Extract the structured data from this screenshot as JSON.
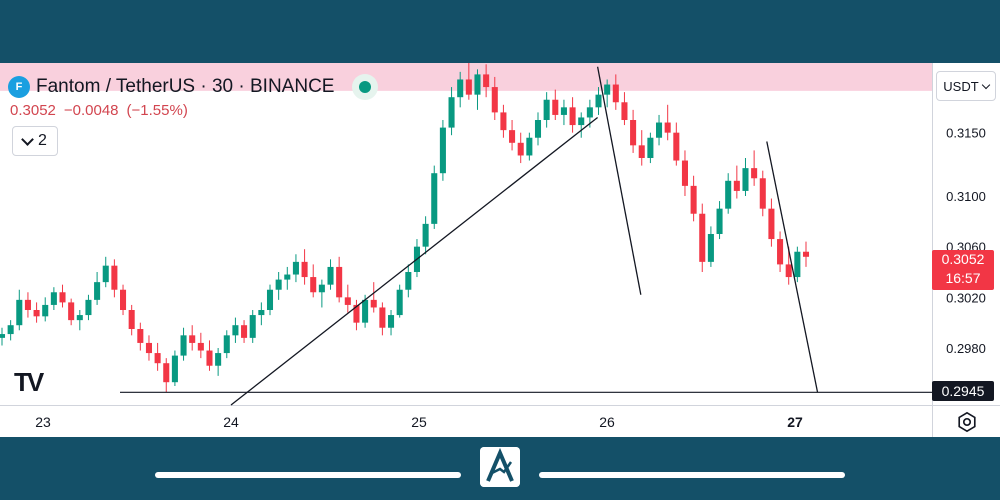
{
  "header": {
    "symbol_title": "Fantom / TetherUS · 30 · BINANCE",
    "last": "0.3052",
    "change": "−0.0048",
    "change_pct": "(−1.55%)",
    "indicator_count": "2",
    "currency": "USDT"
  },
  "price_tag": {
    "price": "0.3052",
    "countdown": "16:57"
  },
  "support_tag": "0.2945",
  "icons": [
    "fantom-logo-icon",
    "live-status-icon",
    "chevron-down-icon",
    "tradingview-logo-icon",
    "settings-icon"
  ],
  "colors": {
    "up": "#089981",
    "down": "#f23645",
    "resistance_zone": "#f9d0dd",
    "frame": "#145068"
  },
  "chart_data": {
    "type": "candlestick",
    "x_ticks": [
      "23",
      "24",
      "25",
      "26",
      "27"
    ],
    "y_ticks": [
      "0.3150",
      "0.3100",
      "0.3060",
      "0.3020",
      "0.2980"
    ],
    "ylim": [
      0.2935,
      0.3205
    ],
    "resistance_zone": [
      0.3183,
      0.321
    ],
    "support_level": 0.2945,
    "trendlines": [
      {
        "from": [
          24.0,
          0.2935
        ],
        "to": [
          25.95,
          0.3162
        ]
      },
      {
        "from": [
          25.95,
          0.3202
        ],
        "to": [
          26.18,
          0.3022
        ]
      },
      {
        "from": [
          26.85,
          0.3143
        ],
        "to": [
          27.12,
          0.2945
        ]
      }
    ],
    "series": [
      {
        "values": [
          [
            0.2988,
            0.2996,
            0.2982,
            0.2991
          ],
          [
            0.2991,
            0.3002,
            0.2986,
            0.2998
          ],
          [
            0.2998,
            0.3026,
            0.2994,
            0.3018
          ],
          [
            0.3018,
            0.3024,
            0.3004,
            0.301
          ],
          [
            0.301,
            0.3016,
            0.3,
            0.3005
          ],
          [
            0.3005,
            0.302,
            0.3001,
            0.3014
          ],
          [
            0.3014,
            0.3028,
            0.301,
            0.3024
          ],
          [
            0.3024,
            0.303,
            0.3012,
            0.3016
          ],
          [
            0.3016,
            0.3019,
            0.2998,
            0.3002
          ],
          [
            0.3002,
            0.301,
            0.2994,
            0.3006
          ],
          [
            0.3006,
            0.3022,
            0.3002,
            0.3018
          ],
          [
            0.3018,
            0.304,
            0.3014,
            0.3032
          ],
          [
            0.3032,
            0.3052,
            0.3028,
            0.3045
          ],
          [
            0.3045,
            0.305,
            0.302,
            0.3026
          ],
          [
            0.3026,
            0.303,
            0.3006,
            0.301
          ],
          [
            0.301,
            0.3014,
            0.299,
            0.2995
          ],
          [
            0.2995,
            0.3,
            0.2978,
            0.2984
          ],
          [
            0.2984,
            0.299,
            0.297,
            0.2976
          ],
          [
            0.2976,
            0.2984,
            0.2962,
            0.2968
          ],
          [
            0.2968,
            0.2972,
            0.2945,
            0.2953
          ],
          [
            0.2953,
            0.2978,
            0.295,
            0.2974
          ],
          [
            0.2974,
            0.2996,
            0.297,
            0.299
          ],
          [
            0.299,
            0.2998,
            0.2978,
            0.2984
          ],
          [
            0.2984,
            0.2992,
            0.2972,
            0.2978
          ],
          [
            0.2978,
            0.2986,
            0.2962,
            0.2966
          ],
          [
            0.2966,
            0.298,
            0.2958,
            0.2976
          ],
          [
            0.2976,
            0.2994,
            0.2972,
            0.299
          ],
          [
            0.299,
            0.3004,
            0.2984,
            0.2998
          ],
          [
            0.2998,
            0.3002,
            0.2984,
            0.2988
          ],
          [
            0.2988,
            0.301,
            0.2984,
            0.3006
          ],
          [
            0.3006,
            0.3016,
            0.2998,
            0.301
          ],
          [
            0.301,
            0.303,
            0.3006,
            0.3026
          ],
          [
            0.3026,
            0.304,
            0.3018,
            0.3034
          ],
          [
            0.3034,
            0.3044,
            0.3026,
            0.3038
          ],
          [
            0.3038,
            0.3054,
            0.3032,
            0.3048
          ],
          [
            0.3048,
            0.3058,
            0.303,
            0.3036
          ],
          [
            0.3036,
            0.3046,
            0.302,
            0.3024
          ],
          [
            0.3024,
            0.3034,
            0.3012,
            0.303
          ],
          [
            0.303,
            0.305,
            0.3026,
            0.3044
          ],
          [
            0.3044,
            0.3052,
            0.3016,
            0.302
          ],
          [
            0.302,
            0.303,
            0.3008,
            0.3014
          ],
          [
            0.3014,
            0.3018,
            0.2994,
            0.3
          ],
          [
            0.3,
            0.3022,
            0.2996,
            0.3018
          ],
          [
            0.3018,
            0.3032,
            0.3008,
            0.3012
          ],
          [
            0.3012,
            0.3016,
            0.299,
            0.2996
          ],
          [
            0.2996,
            0.301,
            0.299,
            0.3006
          ],
          [
            0.3006,
            0.303,
            0.3004,
            0.3026
          ],
          [
            0.3026,
            0.3046,
            0.302,
            0.304
          ],
          [
            0.304,
            0.3066,
            0.3036,
            0.306
          ],
          [
            0.306,
            0.3084,
            0.3054,
            0.3078
          ],
          [
            0.3078,
            0.3124,
            0.3074,
            0.3118
          ],
          [
            0.3118,
            0.316,
            0.3112,
            0.3154
          ],
          [
            0.3154,
            0.3186,
            0.3148,
            0.3178
          ],
          [
            0.3178,
            0.3198,
            0.317,
            0.3192
          ],
          [
            0.3192,
            0.3206,
            0.3176,
            0.318
          ],
          [
            0.318,
            0.32,
            0.3168,
            0.3196
          ],
          [
            0.3196,
            0.3204,
            0.3178,
            0.3186
          ],
          [
            0.3186,
            0.3194,
            0.316,
            0.3166
          ],
          [
            0.3166,
            0.3172,
            0.3146,
            0.3152
          ],
          [
            0.3152,
            0.316,
            0.3136,
            0.3142
          ],
          [
            0.3142,
            0.315,
            0.3126,
            0.3132
          ],
          [
            0.3132,
            0.315,
            0.3128,
            0.3146
          ],
          [
            0.3146,
            0.3166,
            0.314,
            0.316
          ],
          [
            0.316,
            0.3182,
            0.3154,
            0.3176
          ],
          [
            0.3176,
            0.3184,
            0.316,
            0.3164
          ],
          [
            0.3164,
            0.3176,
            0.3156,
            0.317
          ],
          [
            0.317,
            0.3178,
            0.315,
            0.3156
          ],
          [
            0.3156,
            0.3166,
            0.3146,
            0.3162
          ],
          [
            0.3162,
            0.3176,
            0.3154,
            0.317
          ],
          [
            0.317,
            0.3186,
            0.3164,
            0.318
          ],
          [
            0.318,
            0.3192,
            0.317,
            0.3188
          ],
          [
            0.3188,
            0.3196,
            0.3168,
            0.3174
          ],
          [
            0.3174,
            0.3182,
            0.3156,
            0.316
          ],
          [
            0.316,
            0.3168,
            0.3134,
            0.314
          ],
          [
            0.314,
            0.3152,
            0.3124,
            0.313
          ],
          [
            0.313,
            0.315,
            0.3126,
            0.3146
          ],
          [
            0.3146,
            0.3164,
            0.314,
            0.3158
          ],
          [
            0.3158,
            0.3172,
            0.3144,
            0.315
          ],
          [
            0.315,
            0.3158,
            0.3124,
            0.3128
          ],
          [
            0.3128,
            0.3136,
            0.31,
            0.3108
          ],
          [
            0.3108,
            0.3116,
            0.308,
            0.3086
          ],
          [
            0.3086,
            0.3094,
            0.304,
            0.3048
          ],
          [
            0.3048,
            0.3076,
            0.3044,
            0.307
          ],
          [
            0.307,
            0.3096,
            0.3066,
            0.309
          ],
          [
            0.309,
            0.3118,
            0.3086,
            0.3112
          ],
          [
            0.3112,
            0.3124,
            0.3098,
            0.3104
          ],
          [
            0.3104,
            0.313,
            0.31,
            0.3122
          ],
          [
            0.3122,
            0.3136,
            0.3108,
            0.3114
          ],
          [
            0.3114,
            0.312,
            0.3084,
            0.309
          ],
          [
            0.309,
            0.3098,
            0.306,
            0.3066
          ],
          [
            0.3066,
            0.3072,
            0.304,
            0.3046
          ],
          [
            0.3046,
            0.306,
            0.303,
            0.3036
          ],
          [
            0.3036,
            0.306,
            0.3032,
            0.3056
          ],
          [
            0.3056,
            0.3064,
            0.3044,
            0.3052
          ]
        ]
      }
    ]
  }
}
